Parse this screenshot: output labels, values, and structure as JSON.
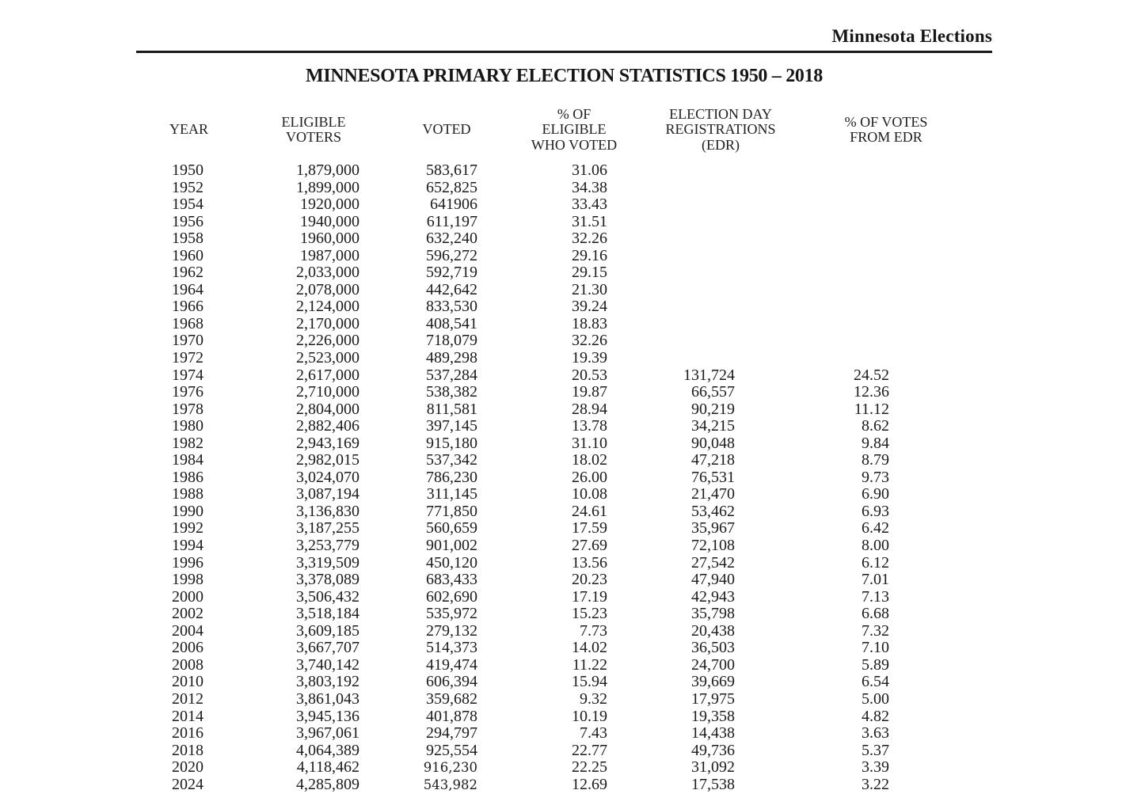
{
  "page": {
    "brand": "Minnesota Elections",
    "title": "MINNESOTA PRIMARY ELECTION STATISTICS 1950 – 2018"
  },
  "table": {
    "columns": [
      {
        "id": "year",
        "lines": [
          "YEAR"
        ]
      },
      {
        "id": "eligible-voters",
        "lines": [
          "ELIGIBLE",
          "VOTERS"
        ]
      },
      {
        "id": "voted",
        "lines": [
          "VOTED"
        ]
      },
      {
        "id": "pct-of-eligible-who-voted",
        "lines": [
          "% OF",
          "ELIGIBLE",
          "WHO VOTED"
        ]
      },
      {
        "id": "election-day-registrations",
        "lines": [
          "ELECTION DAY",
          "REGISTRATIONS",
          "(EDR)"
        ]
      },
      {
        "id": "pct-of-votes-from-edr",
        "lines": [
          "% OF VOTES",
          "FROM EDR"
        ]
      }
    ],
    "rows": [
      {
        "year": "1950",
        "eligible": "1,879,000",
        "voted": "583,617",
        "pct_voted": "31.06",
        "edr": "",
        "pct_edr": ""
      },
      {
        "year": "1952",
        "eligible": "1,899,000",
        "voted": "652,825",
        "pct_voted": "34.38",
        "edr": "",
        "pct_edr": ""
      },
      {
        "year": "1954",
        "eligible": "1920,000",
        "voted": "641906",
        "pct_voted": "33.43",
        "edr": "",
        "pct_edr": ""
      },
      {
        "year": "1956",
        "eligible": "1940,000",
        "voted": "611,197",
        "pct_voted": "31.51",
        "edr": "",
        "pct_edr": ""
      },
      {
        "year": "1958",
        "eligible": "1960,000",
        "voted": "632,240",
        "pct_voted": "32.26",
        "edr": "",
        "pct_edr": ""
      },
      {
        "year": "1960",
        "eligible": "1987,000",
        "voted": "596,272",
        "pct_voted": "29.16",
        "edr": "",
        "pct_edr": ""
      },
      {
        "year": "1962",
        "eligible": "2,033,000",
        "voted": "592,719",
        "pct_voted": "29.15",
        "edr": "",
        "pct_edr": ""
      },
      {
        "year": "1964",
        "eligible": "2,078,000",
        "voted": "442,642",
        "pct_voted": "21.30",
        "edr": "",
        "pct_edr": ""
      },
      {
        "year": "1966",
        "eligible": "2,124,000",
        "voted": "833,530",
        "pct_voted": "39.24",
        "edr": "",
        "pct_edr": ""
      },
      {
        "year": "1968",
        "eligible": "2,170,000",
        "voted": "408,541",
        "pct_voted": "18.83",
        "edr": "",
        "pct_edr": ""
      },
      {
        "year": "1970",
        "eligible": "2,226,000",
        "voted": "718,079",
        "pct_voted": "32.26",
        "edr": "",
        "pct_edr": ""
      },
      {
        "year": "1972",
        "eligible": "2,523,000",
        "voted": "489,298",
        "pct_voted": "19.39",
        "edr": "",
        "pct_edr": ""
      },
      {
        "year": "1974",
        "eligible": "2,617,000",
        "voted": "537,284",
        "pct_voted": "20.53",
        "edr": "131,724",
        "pct_edr": "24.52"
      },
      {
        "year": "1976",
        "eligible": "2,710,000",
        "voted": "538,382",
        "pct_voted": "19.87",
        "edr": "66,557",
        "pct_edr": "12.36"
      },
      {
        "year": "1978",
        "eligible": "2,804,000",
        "voted": "811,581",
        "pct_voted": "28.94",
        "edr": "90,219",
        "pct_edr": "11.12"
      },
      {
        "year": "1980",
        "eligible": "2,882,406",
        "voted": "397,145",
        "pct_voted": "13.78",
        "edr": "34,215",
        "pct_edr": "8.62"
      },
      {
        "year": "1982",
        "eligible": "2,943,169",
        "voted": "915,180",
        "pct_voted": "31.10",
        "edr": "90,048",
        "pct_edr": "9.84"
      },
      {
        "year": "1984",
        "eligible": "2,982,015",
        "voted": "537,342",
        "pct_voted": "18.02",
        "edr": "47,218",
        "pct_edr": "8.79"
      },
      {
        "year": "1986",
        "eligible": "3,024,070",
        "voted": "786,230",
        "pct_voted": "26.00",
        "edr": "76,531",
        "pct_edr": "9.73"
      },
      {
        "year": "1988",
        "eligible": "3,087,194",
        "voted": "311,145",
        "pct_voted": "10.08",
        "edr": "21,470",
        "pct_edr": "6.90"
      },
      {
        "year": "1990",
        "eligible": "3,136,830",
        "voted": "771,850",
        "pct_voted": "24.61",
        "edr": "53,462",
        "pct_edr": "6.93"
      },
      {
        "year": "1992",
        "eligible": "3,187,255",
        "voted": "560,659",
        "pct_voted": "17.59",
        "edr": "35,967",
        "pct_edr": "6.42"
      },
      {
        "year": "1994",
        "eligible": "3,253,779",
        "voted": "901,002",
        "pct_voted": "27.69",
        "edr": "72,108",
        "pct_edr": "8.00"
      },
      {
        "year": "1996",
        "eligible": "3,319,509",
        "voted": "450,120",
        "pct_voted": "13.56",
        "edr": "27,542",
        "pct_edr": "6.12"
      },
      {
        "year": "1998",
        "eligible": "3,378,089",
        "voted": "683,433",
        "pct_voted": "20.23",
        "edr": "47,940",
        "pct_edr": "7.01"
      },
      {
        "year": "2000",
        "eligible": "3,506,432",
        "voted": "602,690",
        "pct_voted": "17.19",
        "edr": "42,943",
        "pct_edr": "7.13"
      },
      {
        "year": "2002",
        "eligible": "3,518,184",
        "voted": "535,972",
        "pct_voted": "15.23",
        "edr": "35,798",
        "pct_edr": "6.68"
      },
      {
        "year": "2004",
        "eligible": "3,609,185",
        "voted": "279,132",
        "pct_voted": "7.73",
        "edr": "20,438",
        "pct_edr": "7.32"
      },
      {
        "year": "2006",
        "eligible": "3,667,707",
        "voted": "514,373",
        "pct_voted": "14.02",
        "edr": "36,503",
        "pct_edr": "7.10"
      },
      {
        "year": "2008",
        "eligible": "3,740,142",
        "voted": "419,474",
        "pct_voted": "11.22",
        "edr": "24,700",
        "pct_edr": "5.89"
      },
      {
        "year": "2010",
        "eligible": "3,803,192",
        "voted": "606,394",
        "pct_voted": "15.94",
        "edr": "39,669",
        "pct_edr": "6.54"
      },
      {
        "year": "2012",
        "eligible": "3,861,043",
        "voted": "359,682",
        "pct_voted": "9.32",
        "edr": "17,975",
        "pct_edr": "5.00"
      },
      {
        "year": "2014",
        "eligible": "3,945,136",
        "voted": "401,878",
        "pct_voted": "10.19",
        "edr": "19,358",
        "pct_edr": "4.82"
      },
      {
        "year": "2016",
        "eligible": "3,967,061",
        "voted": "294,797",
        "pct_voted": "7.43",
        "edr": "14,438",
        "pct_edr": "3.63"
      },
      {
        "year": "2018",
        "eligible": "4,064,389",
        "voted": "925,554",
        "pct_voted": "22.77",
        "edr": "49,736",
        "pct_edr": "5.37"
      },
      {
        "year": "2020",
        "eligible": "4,118,462",
        "voted": "916,230",
        "pct_voted": "22.25",
        "edr": "31,092",
        "pct_edr": "3.39",
        "voted_small": true
      },
      {
        "year": "2024",
        "eligible": "4,285,809",
        "voted": "543,982",
        "pct_voted": "12.69",
        "edr": "17,538",
        "pct_edr": "3.22",
        "voted_small": true
      }
    ]
  }
}
